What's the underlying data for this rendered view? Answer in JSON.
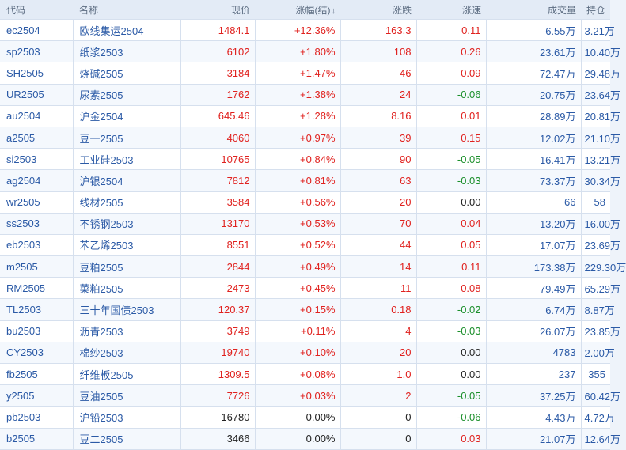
{
  "headers": {
    "code": "代码",
    "name": "名称",
    "price": "现价",
    "change_pct": "涨幅(结)",
    "change_pct_sort": "↓",
    "change": "涨跌",
    "speed": "涨速",
    "volume": "成交量",
    "open_interest": "持仓"
  },
  "colors": {
    "up": "#e0211e",
    "down": "#1b8f2b",
    "flat": "#222222",
    "link": "#2b5aa6"
  },
  "rows": [
    {
      "code": "ec2504",
      "name": "欧线集运2504",
      "price": "1484.1",
      "change_pct": "+12.36%",
      "change": "163.3",
      "speed": "0.11",
      "volume": "6.55万",
      "open_interest": "3.21万"
    },
    {
      "code": "sp2503",
      "name": "纸浆2503",
      "price": "6102",
      "change_pct": "+1.80%",
      "change": "108",
      "speed": "0.26",
      "volume": "23.61万",
      "open_interest": "10.40万"
    },
    {
      "code": "SH2505",
      "name": "烧碱2505",
      "price": "3184",
      "change_pct": "+1.47%",
      "change": "46",
      "speed": "0.09",
      "volume": "72.47万",
      "open_interest": "29.48万"
    },
    {
      "code": "UR2505",
      "name": "尿素2505",
      "price": "1762",
      "change_pct": "+1.38%",
      "change": "24",
      "speed": "-0.06",
      "volume": "20.75万",
      "open_interest": "23.64万"
    },
    {
      "code": "au2504",
      "name": "沪金2504",
      "price": "645.46",
      "change_pct": "+1.28%",
      "change": "8.16",
      "speed": "0.01",
      "volume": "28.89万",
      "open_interest": "20.81万"
    },
    {
      "code": "a2505",
      "name": "豆一2505",
      "price": "4060",
      "change_pct": "+0.97%",
      "change": "39",
      "speed": "0.15",
      "volume": "12.02万",
      "open_interest": "21.10万"
    },
    {
      "code": "si2503",
      "name": "工业硅2503",
      "price": "10765",
      "change_pct": "+0.84%",
      "change": "90",
      "speed": "-0.05",
      "volume": "16.41万",
      "open_interest": "13.21万"
    },
    {
      "code": "ag2504",
      "name": "沪银2504",
      "price": "7812",
      "change_pct": "+0.81%",
      "change": "63",
      "speed": "-0.03",
      "volume": "73.37万",
      "open_interest": "30.34万"
    },
    {
      "code": "wr2505",
      "name": "线材2505",
      "price": "3584",
      "change_pct": "+0.56%",
      "change": "20",
      "speed": "0.00",
      "volume": "66",
      "open_interest": "58"
    },
    {
      "code": "ss2503",
      "name": "不锈钢2503",
      "price": "13170",
      "change_pct": "+0.53%",
      "change": "70",
      "speed": "0.04",
      "volume": "13.20万",
      "open_interest": "16.00万"
    },
    {
      "code": "eb2503",
      "name": "苯乙烯2503",
      "price": "8551",
      "change_pct": "+0.52%",
      "change": "44",
      "speed": "0.05",
      "volume": "17.07万",
      "open_interest": "23.69万"
    },
    {
      "code": "m2505",
      "name": "豆粕2505",
      "price": "2844",
      "change_pct": "+0.49%",
      "change": "14",
      "speed": "0.11",
      "volume": "173.38万",
      "open_interest": "229.30万"
    },
    {
      "code": "RM2505",
      "name": "菜粕2505",
      "price": "2473",
      "change_pct": "+0.45%",
      "change": "11",
      "speed": "0.08",
      "volume": "79.49万",
      "open_interest": "65.29万"
    },
    {
      "code": "TL2503",
      "name": "三十年国债2503",
      "price": "120.37",
      "change_pct": "+0.15%",
      "change": "0.18",
      "speed": "-0.02",
      "volume": "6.74万",
      "open_interest": "8.87万"
    },
    {
      "code": "bu2503",
      "name": "沥青2503",
      "price": "3749",
      "change_pct": "+0.11%",
      "change": "4",
      "speed": "-0.03",
      "volume": "26.07万",
      "open_interest": "23.85万"
    },
    {
      "code": "CY2503",
      "name": "棉纱2503",
      "price": "19740",
      "change_pct": "+0.10%",
      "change": "20",
      "speed": "0.00",
      "volume": "4783",
      "open_interest": "2.00万"
    },
    {
      "code": "fb2505",
      "name": "纤维板2505",
      "price": "1309.5",
      "change_pct": "+0.08%",
      "change": "1.0",
      "speed": "0.00",
      "volume": "237",
      "open_interest": "355"
    },
    {
      "code": "y2505",
      "name": "豆油2505",
      "price": "7726",
      "change_pct": "+0.03%",
      "change": "2",
      "speed": "-0.05",
      "volume": "37.25万",
      "open_interest": "60.42万"
    },
    {
      "code": "pb2503",
      "name": "沪铅2503",
      "price": "16780",
      "change_pct": "0.00%",
      "change": "0",
      "speed": "-0.06",
      "volume": "4.43万",
      "open_interest": "4.72万"
    },
    {
      "code": "b2505",
      "name": "豆二2505",
      "price": "3466",
      "change_pct": "0.00%",
      "change": "0",
      "speed": "0.03",
      "volume": "21.07万",
      "open_interest": "12.64万"
    }
  ]
}
